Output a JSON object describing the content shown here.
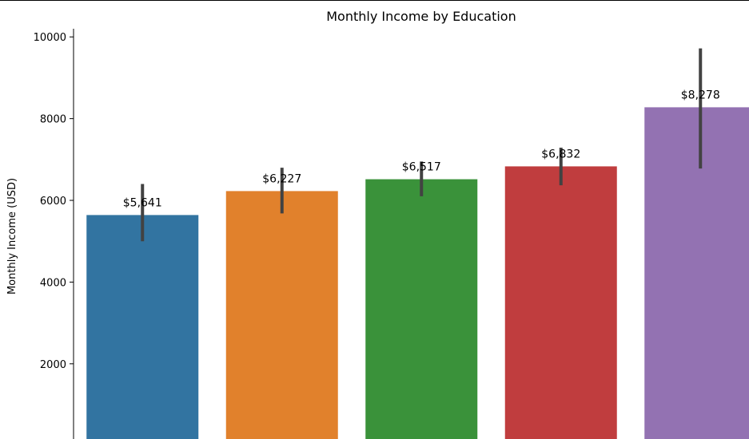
{
  "chart_data": {
    "type": "bar",
    "title": "Monthly Income by Education",
    "xlabel": "",
    "ylabel": "Monthly Income (USD)",
    "ylim": [
      160,
      10200
    ],
    "yticks": [
      2000,
      4000,
      6000,
      8000,
      10000
    ],
    "grid": false,
    "values": [
      5641,
      6227,
      6517,
      6832,
      8278
    ],
    "data_labels": [
      "$5,641",
      "$6,227",
      "$6,517",
      "$6,832",
      "$8,278"
    ],
    "error_bars": [
      [
        5000,
        6400
      ],
      [
        5680,
        6800
      ],
      [
        6100,
        6950
      ],
      [
        6370,
        7290
      ],
      [
        6780,
        9720
      ]
    ],
    "colors": [
      "#3274a1",
      "#e1812c",
      "#3a923a",
      "#c03d3e",
      "#9372b2"
    ],
    "error_bar_color": "#424242"
  }
}
